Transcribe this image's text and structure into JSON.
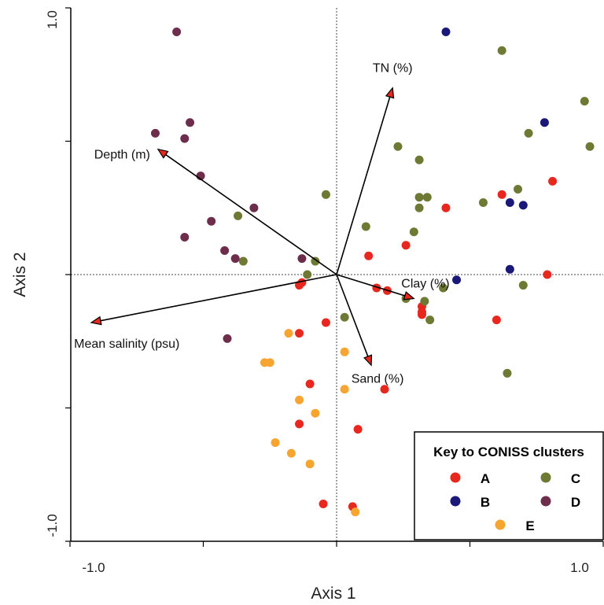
{
  "chart_data": {
    "type": "scatter",
    "xlabel": "Axis 1",
    "ylabel": "Axis 2",
    "xlim": [
      -1.0,
      1.0
    ],
    "ylim": [
      -1.0,
      1.0
    ],
    "x_tick_labels": [
      "-1.0",
      "1.0"
    ],
    "y_tick_labels": [
      "1.0",
      "-1.0"
    ],
    "ticks": [
      -1.0,
      -0.5,
      0.0,
      0.5,
      1.0
    ],
    "grid": false,
    "reference_lines": [
      0,
      0
    ],
    "legend": {
      "title": "Key to CONISS clusters",
      "placement": "bottom-right"
    },
    "series": [
      {
        "name": "A",
        "color": "#e8281e",
        "points": [
          [
            0.81,
            0.35
          ],
          [
            0.62,
            0.3
          ],
          [
            0.41,
            0.25
          ],
          [
            0.26,
            0.11
          ],
          [
            0.12,
            0.07
          ],
          [
            0.79,
            0.0
          ],
          [
            -0.14,
            -0.04
          ],
          [
            -0.13,
            -0.03
          ],
          [
            0.15,
            -0.05
          ],
          [
            0.19,
            -0.06
          ],
          [
            0.32,
            -0.12
          ],
          [
            0.32,
            -0.14
          ],
          [
            0.32,
            -0.15
          ],
          [
            0.6,
            -0.17
          ],
          [
            -0.04,
            -0.18
          ],
          [
            -0.14,
            -0.22
          ],
          [
            -0.1,
            -0.41
          ],
          [
            0.18,
            -0.43
          ],
          [
            -0.14,
            -0.56
          ],
          [
            0.08,
            -0.58
          ],
          [
            -0.05,
            -0.86
          ],
          [
            0.06,
            -0.87
          ]
        ]
      },
      {
        "name": "B",
        "color": "#1a1878",
        "points": [
          [
            0.41,
            0.91
          ],
          [
            0.78,
            0.57
          ],
          [
            0.65,
            0.27
          ],
          [
            0.7,
            0.26
          ],
          [
            0.65,
            0.02
          ],
          [
            0.45,
            -0.02
          ]
        ]
      },
      {
        "name": "C",
        "color": "#6e7a33",
        "points": [
          [
            0.62,
            0.84
          ],
          [
            0.93,
            0.65
          ],
          [
            0.72,
            0.53
          ],
          [
            0.95,
            0.48
          ],
          [
            0.23,
            0.48
          ],
          [
            0.31,
            0.43
          ],
          [
            0.31,
            0.29
          ],
          [
            0.34,
            0.29
          ],
          [
            0.31,
            0.25
          ],
          [
            0.55,
            0.27
          ],
          [
            0.68,
            0.32
          ],
          [
            -0.04,
            0.3
          ],
          [
            -0.37,
            0.22
          ],
          [
            0.11,
            0.18
          ],
          [
            0.29,
            0.16
          ],
          [
            -0.35,
            0.05
          ],
          [
            -0.08,
            0.05
          ],
          [
            -0.11,
            0.0
          ],
          [
            0.4,
            -0.05
          ],
          [
            0.33,
            -0.1
          ],
          [
            0.26,
            -0.09
          ],
          [
            0.35,
            -0.17
          ],
          [
            0.7,
            -0.04
          ],
          [
            0.03,
            -0.16
          ],
          [
            0.64,
            -0.37
          ]
        ]
      },
      {
        "name": "D",
        "color": "#6e2d4a",
        "points": [
          [
            -0.6,
            0.91
          ],
          [
            -0.68,
            0.53
          ],
          [
            -0.55,
            0.57
          ],
          [
            -0.57,
            0.51
          ],
          [
            -0.51,
            0.37
          ],
          [
            -0.31,
            0.25
          ],
          [
            -0.47,
            0.2
          ],
          [
            -0.57,
            0.14
          ],
          [
            -0.42,
            0.09
          ],
          [
            -0.38,
            0.06
          ],
          [
            -0.13,
            0.06
          ],
          [
            -0.41,
            -0.24
          ]
        ]
      },
      {
        "name": "E",
        "color": "#f7a531",
        "points": [
          [
            -0.18,
            -0.22
          ],
          [
            0.03,
            -0.29
          ],
          [
            -0.27,
            -0.33
          ],
          [
            -0.25,
            -0.33
          ],
          [
            0.03,
            -0.43
          ],
          [
            -0.14,
            -0.47
          ],
          [
            -0.08,
            -0.52
          ],
          [
            -0.23,
            -0.63
          ],
          [
            -0.17,
            -0.67
          ],
          [
            -0.1,
            -0.71
          ],
          [
            0.07,
            -0.89
          ]
        ]
      }
    ],
    "vectors": [
      {
        "label": "TN (%)",
        "x": 0.21,
        "y": 0.7
      },
      {
        "label": "Depth (m)",
        "x": -0.67,
        "y": 0.47
      },
      {
        "label": "Clay (%)",
        "x": 0.29,
        "y": -0.09
      },
      {
        "label": "Mean salinity (psu)",
        "x": -0.92,
        "y": -0.18
      },
      {
        "label": "Sand (%)",
        "x": 0.13,
        "y": -0.34
      }
    ]
  }
}
